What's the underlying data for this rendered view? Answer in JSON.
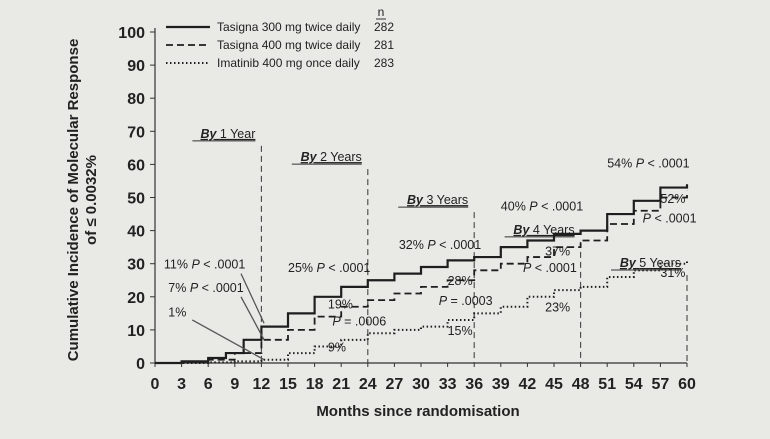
{
  "chart_data": {
    "type": "line",
    "title": "",
    "xlabel": "Months since randomisation",
    "ylabel_line1": "Cumulative Incidence of Molecular Response",
    "ylabel_line2": "of ≤ 0.0032%",
    "xlim": [
      0,
      60
    ],
    "ylim": [
      0,
      100
    ],
    "x_ticks": [
      0,
      3,
      6,
      9,
      12,
      15,
      18,
      21,
      24,
      27,
      30,
      33,
      36,
      39,
      42,
      45,
      48,
      51,
      54,
      57,
      60
    ],
    "y_ticks": [
      0,
      10,
      20,
      30,
      40,
      50,
      60,
      70,
      80,
      90,
      100
    ],
    "grid": false,
    "legend_position": "top-left",
    "legend_n_header": "n",
    "series": [
      {
        "name": "Tasigna 300 mg twice daily",
        "n": "282",
        "style": "solid",
        "points": [
          [
            0,
            0
          ],
          [
            3,
            0.5
          ],
          [
            6,
            1.5
          ],
          [
            8,
            3
          ],
          [
            10,
            7
          ],
          [
            12,
            11
          ],
          [
            15,
            15
          ],
          [
            18,
            20
          ],
          [
            21,
            23
          ],
          [
            24,
            25
          ],
          [
            27,
            27
          ],
          [
            30,
            29
          ],
          [
            33,
            31
          ],
          [
            36,
            32
          ],
          [
            39,
            35
          ],
          [
            42,
            37
          ],
          [
            45,
            39
          ],
          [
            48,
            40
          ],
          [
            51,
            45
          ],
          [
            54,
            49
          ],
          [
            57,
            53
          ],
          [
            60,
            54
          ]
        ]
      },
      {
        "name": "Tasigna 400 mg twice daily",
        "n": "281",
        "style": "dashed",
        "points": [
          [
            0,
            0
          ],
          [
            3,
            0.3
          ],
          [
            6,
            1
          ],
          [
            9,
            3
          ],
          [
            12,
            7
          ],
          [
            15,
            10
          ],
          [
            18,
            14
          ],
          [
            21,
            17
          ],
          [
            24,
            19
          ],
          [
            27,
            21
          ],
          [
            30,
            23
          ],
          [
            33,
            25
          ],
          [
            36,
            28
          ],
          [
            39,
            30
          ],
          [
            42,
            32
          ],
          [
            45,
            35
          ],
          [
            48,
            37
          ],
          [
            51,
            42
          ],
          [
            54,
            46
          ],
          [
            57,
            50
          ],
          [
            60,
            52
          ]
        ]
      },
      {
        "name": "Imatinib 400 mg once daily",
        "n": "283",
        "style": "dotted",
        "points": [
          [
            0,
            0
          ],
          [
            6,
            0.2
          ],
          [
            9,
            0.5
          ],
          [
            12,
            1
          ],
          [
            15,
            3
          ],
          [
            18,
            5
          ],
          [
            21,
            7
          ],
          [
            24,
            9
          ],
          [
            27,
            10
          ],
          [
            30,
            11
          ],
          [
            33,
            13
          ],
          [
            36,
            15
          ],
          [
            39,
            17
          ],
          [
            42,
            20
          ],
          [
            45,
            22
          ],
          [
            48,
            23
          ],
          [
            51,
            26
          ],
          [
            54,
            28
          ],
          [
            57,
            30
          ],
          [
            60,
            31
          ]
        ]
      }
    ],
    "milestones": [
      {
        "x": 12,
        "label_prefix": "By",
        "label_rest": "1 Year"
      },
      {
        "x": 24,
        "label_prefix": "By",
        "label_rest": "2 Years"
      },
      {
        "x": 36,
        "label_prefix": "By",
        "label_rest": "3 Years"
      },
      {
        "x": 48,
        "label_prefix": "By",
        "label_rest": "4 Years"
      },
      {
        "x": 60,
        "label_prefix": "By",
        "label_rest": "5 Years"
      }
    ],
    "annotations": [
      {
        "x": 1,
        "y": 28.5,
        "text": "11% P < .0001"
      },
      {
        "x": 1.5,
        "y": 21.5,
        "text": "7% P < .0001"
      },
      {
        "x": 1.5,
        "y": 14,
        "text": "1%"
      },
      {
        "x": 15,
        "y": 27.5,
        "text": "25% P < .0001"
      },
      {
        "x": 19.5,
        "y": 16.5,
        "text": "19%"
      },
      {
        "x": 20,
        "y": 11.3,
        "text": "P = .0006"
      },
      {
        "x": 19.5,
        "y": 3.5,
        "text": "9%"
      },
      {
        "x": 27.5,
        "y": 34.5,
        "text": "32% P < .0001"
      },
      {
        "x": 33,
        "y": 23.5,
        "text": "28%"
      },
      {
        "x": 32,
        "y": 17.5,
        "text": "P = .0003"
      },
      {
        "x": 33,
        "y": 8.5,
        "text": "15%"
      },
      {
        "x": 39,
        "y": 46,
        "text": "40% P < .0001"
      },
      {
        "x": 44,
        "y": 32.5,
        "text": "37%"
      },
      {
        "x": 41.5,
        "y": 27.5,
        "text": "P < .0001"
      },
      {
        "x": 44,
        "y": 15.5,
        "text": "23%"
      },
      {
        "x": 51,
        "y": 59,
        "text": "54% P < .0001"
      },
      {
        "x": 57,
        "y": 48.3,
        "text": "52%"
      },
      {
        "x": 55,
        "y": 42.5,
        "text": "P < .0001"
      },
      {
        "x": 57,
        "y": 26,
        "text": "31%"
      }
    ]
  }
}
